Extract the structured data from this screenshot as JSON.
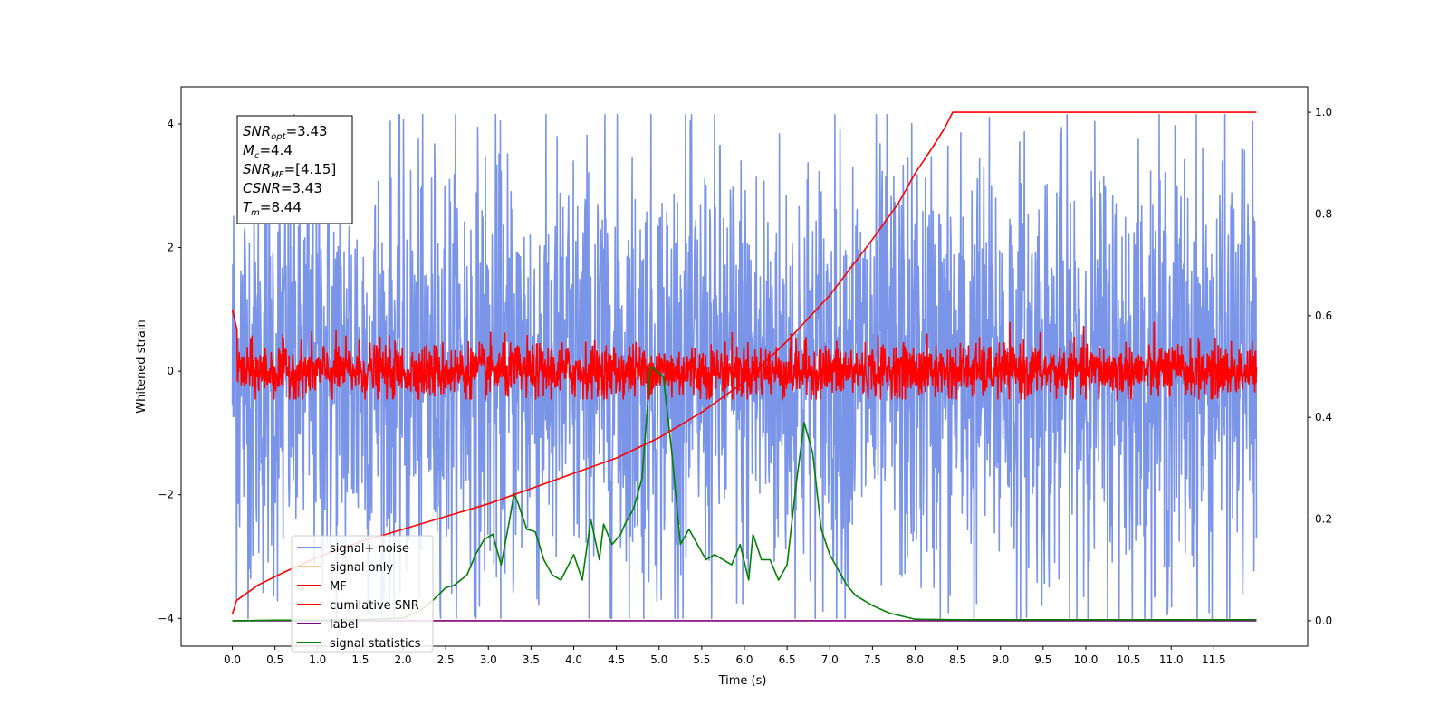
{
  "chart_data": {
    "type": "line",
    "title": "",
    "xlabel": "Time (s)",
    "ylabel": "Whitened strain",
    "xlim": [
      -0.6,
      12.6
    ],
    "ylim": [
      -4.45,
      4.6
    ],
    "y2lim": [
      -0.05,
      1.05
    ],
    "grid": false,
    "legend_position": "lower-left",
    "x_ticks": [
      "0.0",
      "0.5",
      "1.0",
      "1.5",
      "2.0",
      "2.5",
      "3.0",
      "3.5",
      "4.0",
      "4.5",
      "5.0",
      "5.5",
      "6.0",
      "6.5",
      "7.0",
      "7.5",
      "8.0",
      "8.5",
      "9.0",
      "9.5",
      "10.0",
      "10.5",
      "11.0",
      "11.5"
    ],
    "y_ticks": [
      "4",
      "2",
      "0",
      "−2",
      "−4"
    ],
    "y2_ticks": [
      "1.0",
      "0.8",
      "0.6",
      "0.4",
      "0.2",
      "0.0"
    ],
    "series": [
      {
        "name": "signal+ noise",
        "color": "#7a94e8",
        "axis": "left",
        "x_range": [
          0.0,
          12.0
        ],
        "description_values": {
          "mean": 0.0,
          "band": [
            -2.5,
            2.5
          ],
          "extremes": [
            -4.0,
            4.15
          ]
        }
      },
      {
        "name": "signal only",
        "color": "#f5c98a",
        "axis": "left"
      },
      {
        "name": "MF",
        "color": "#ff0000",
        "axis": "left",
        "x_range": [
          0.0,
          12.0
        ],
        "description_values": {
          "mean": 0.0,
          "band": [
            -0.4,
            0.4
          ],
          "extremes": [
            -0.45,
            1.0
          ]
        }
      },
      {
        "name": "cumilative SNR",
        "color": "#ff0000",
        "axis": "right",
        "x": [
          0.0,
          0.05,
          0.3,
          0.6,
          1.0,
          1.5,
          2.0,
          2.5,
          3.0,
          3.5,
          4.0,
          4.5,
          5.0,
          5.5,
          6.0,
          6.5,
          7.0,
          7.5,
          7.8,
          8.0,
          8.2,
          8.35,
          8.44,
          12.0
        ],
        "y": [
          0.013,
          0.04,
          0.07,
          0.095,
          0.125,
          0.155,
          0.18,
          0.205,
          0.23,
          0.26,
          0.29,
          0.32,
          0.36,
          0.41,
          0.47,
          0.55,
          0.64,
          0.75,
          0.82,
          0.88,
          0.93,
          0.97,
          1.0,
          1.0
        ]
      },
      {
        "name": "label",
        "color": "#800080",
        "axis": "right",
        "x": [
          0.0,
          12.0
        ],
        "y": [
          0.0,
          0.0
        ]
      },
      {
        "name": "signal statistics",
        "color": "#008000",
        "axis": "right",
        "x": [
          0.0,
          0.5,
          1.0,
          1.5,
          2.0,
          2.2,
          2.35,
          2.5,
          2.6,
          2.75,
          2.85,
          2.95,
          3.05,
          3.15,
          3.25,
          3.3,
          3.35,
          3.45,
          3.55,
          3.65,
          3.75,
          3.85,
          4.0,
          4.1,
          4.2,
          4.3,
          4.35,
          4.45,
          4.55,
          4.6,
          4.7,
          4.8,
          4.9,
          5.05,
          5.15,
          5.25,
          5.35,
          5.45,
          5.55,
          5.65,
          5.75,
          5.85,
          5.95,
          6.05,
          6.1,
          6.2,
          6.3,
          6.4,
          6.5,
          6.6,
          6.7,
          6.8,
          6.9,
          7.0,
          7.1,
          7.2,
          7.3,
          7.5,
          7.7,
          8.0,
          8.5,
          9.0,
          10.0,
          11.0,
          12.0
        ],
        "y": [
          0.0,
          0.001,
          0.001,
          0.002,
          0.005,
          0.02,
          0.04,
          0.065,
          0.07,
          0.09,
          0.13,
          0.16,
          0.17,
          0.11,
          0.2,
          0.25,
          0.23,
          0.18,
          0.175,
          0.12,
          0.09,
          0.08,
          0.13,
          0.08,
          0.2,
          0.12,
          0.19,
          0.15,
          0.17,
          0.19,
          0.22,
          0.28,
          0.5,
          0.48,
          0.33,
          0.15,
          0.18,
          0.15,
          0.12,
          0.13,
          0.12,
          0.11,
          0.15,
          0.08,
          0.17,
          0.12,
          0.12,
          0.08,
          0.11,
          0.26,
          0.39,
          0.33,
          0.18,
          0.13,
          0.1,
          0.07,
          0.05,
          0.03,
          0.015,
          0.003,
          0.002,
          0.002,
          0.002,
          0.002,
          0.002
        ]
      }
    ],
    "annotations": [
      {
        "id": "snr_opt",
        "label": "SNR",
        "sub": "opt",
        "value": "=3.43"
      },
      {
        "id": "mc",
        "label": "M",
        "sub": "c",
        "value": "=4.4"
      },
      {
        "id": "snr_mf",
        "label": "SNR",
        "sub": "MF",
        "value": "=[4.15]"
      },
      {
        "id": "csnr",
        "label": "CSNR",
        "sub": "",
        "value": "=3.43"
      },
      {
        "id": "tm",
        "label": "T",
        "sub": "m",
        "value": "=8.44"
      }
    ]
  }
}
